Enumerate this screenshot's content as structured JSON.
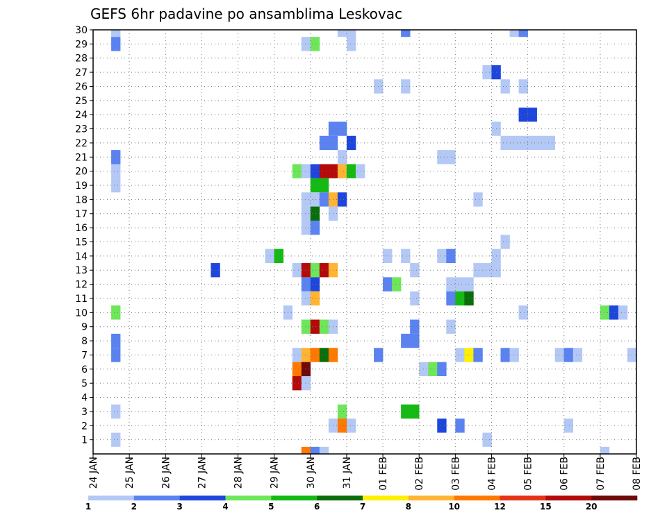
{
  "chart_data": {
    "type": "heatmap",
    "title": "GEFS 6hr padavine po ansamblima Leskovac",
    "xlabel": "",
    "ylabel": "",
    "x_ticks": [
      "24 JAN",
      "25 JAN",
      "26 JAN",
      "27 JAN",
      "28 JAN",
      "29 JAN",
      "30 JAN",
      "31 JAN",
      "01 FEB",
      "02 FEB",
      "03 FEB",
      "04 FEB",
      "05 FEB",
      "06 FEB",
      "07 FEB",
      "08 FEB"
    ],
    "x_range": [
      "24 JAN 00Z",
      "08 FEB 00Z"
    ],
    "time_step_hours": 6,
    "y_ticks": [
      1,
      2,
      3,
      4,
      5,
      6,
      7,
      8,
      9,
      10,
      11,
      12,
      13,
      14,
      15,
      16,
      17,
      18,
      19,
      20,
      21,
      22,
      23,
      24,
      25,
      26,
      27,
      28,
      29,
      30
    ],
    "y_range": [
      0,
      30
    ],
    "grid": true,
    "legend": {
      "position": "bottom",
      "labels": [
        "1",
        "2",
        "3",
        "4",
        "5",
        "6",
        "7",
        "8",
        "10",
        "12",
        "15",
        "20"
      ],
      "colors": [
        "#b4c8f5",
        "#5a82f0",
        "#1e46dc",
        "#6ee65a",
        "#14b914",
        "#0a6e0a",
        "#fff000",
        "#ffb432",
        "#ff7800",
        "#e63214",
        "#b40a0a",
        "#6e0a0a"
      ]
    },
    "cells": [
      {
        "member": 30,
        "time": "24 JAN 12Z",
        "value": 1
      },
      {
        "member": 30,
        "time": "30 JAN 18Z",
        "value": 1
      },
      {
        "member": 30,
        "time": "31 JAN 00Z",
        "value": 1
      },
      {
        "member": 30,
        "time": "01 FEB 12Z",
        "value": 2
      },
      {
        "member": 30,
        "time": "04 FEB 12Z",
        "value": 1
      },
      {
        "member": 30,
        "time": "04 FEB 18Z",
        "value": 2
      },
      {
        "member": 29,
        "time": "24 JAN 12Z",
        "value": 2
      },
      {
        "member": 29,
        "time": "29 JAN 18Z",
        "value": 1
      },
      {
        "member": 29,
        "time": "30 JAN 00Z",
        "value": 4
      },
      {
        "member": 29,
        "time": "31 JAN 00Z",
        "value": 1
      },
      {
        "member": 27,
        "time": "03 FEB 18Z",
        "value": 1
      },
      {
        "member": 27,
        "time": "04 FEB 00Z",
        "value": 3
      },
      {
        "member": 26,
        "time": "31 JAN 18Z",
        "value": 1
      },
      {
        "member": 26,
        "time": "01 FEB 12Z",
        "value": 1
      },
      {
        "member": 26,
        "time": "04 FEB 06Z",
        "value": 1
      },
      {
        "member": 26,
        "time": "04 FEB 18Z",
        "value": 1
      },
      {
        "member": 24,
        "time": "04 FEB 18Z",
        "value": 3
      },
      {
        "member": 24,
        "time": "05 FEB 00Z",
        "value": 3
      },
      {
        "member": 23,
        "time": "30 JAN 12Z",
        "value": 2
      },
      {
        "member": 23,
        "time": "30 JAN 18Z",
        "value": 2
      },
      {
        "member": 23,
        "time": "04 FEB 00Z",
        "value": 1
      },
      {
        "member": 22,
        "time": "30 JAN 06Z",
        "value": 2
      },
      {
        "member": 22,
        "time": "30 JAN 12Z",
        "value": 2
      },
      {
        "member": 22,
        "time": "31 JAN 00Z",
        "value": 3
      },
      {
        "member": 22,
        "time": "04 FEB 06Z",
        "value": 1
      },
      {
        "member": 22,
        "time": "04 FEB 12Z",
        "value": 1
      },
      {
        "member": 22,
        "time": "04 FEB 18Z",
        "value": 1
      },
      {
        "member": 22,
        "time": "05 FEB 00Z",
        "value": 1
      },
      {
        "member": 22,
        "time": "05 FEB 06Z",
        "value": 1
      },
      {
        "member": 22,
        "time": "05 FEB 12Z",
        "value": 1
      },
      {
        "member": 21,
        "time": "24 JAN 12Z",
        "value": 2
      },
      {
        "member": 21,
        "time": "30 JAN 18Z",
        "value": 1
      },
      {
        "member": 21,
        "time": "02 FEB 12Z",
        "value": 1
      },
      {
        "member": 21,
        "time": "02 FEB 18Z",
        "value": 1
      },
      {
        "member": 20,
        "time": "24 JAN 12Z",
        "value": 1
      },
      {
        "member": 20,
        "time": "29 JAN 12Z",
        "value": 4
      },
      {
        "member": 20,
        "time": "29 JAN 18Z",
        "value": 1
      },
      {
        "member": 20,
        "time": "30 JAN 00Z",
        "value": 3
      },
      {
        "member": 20,
        "time": "30 JAN 06Z",
        "value": 15
      },
      {
        "member": 20,
        "time": "30 JAN 12Z",
        "value": 15
      },
      {
        "member": 20,
        "time": "30 JAN 18Z",
        "value": 8
      },
      {
        "member": 20,
        "time": "31 JAN 00Z",
        "value": 5
      },
      {
        "member": 20,
        "time": "31 JAN 06Z",
        "value": 1
      },
      {
        "member": 19,
        "time": "24 JAN 12Z",
        "value": 1
      },
      {
        "member": 19,
        "time": "30 JAN 00Z",
        "value": 5
      },
      {
        "member": 19,
        "time": "30 JAN 06Z",
        "value": 5
      },
      {
        "member": 18,
        "time": "29 JAN 18Z",
        "value": 1
      },
      {
        "member": 18,
        "time": "30 JAN 00Z",
        "value": 1
      },
      {
        "member": 18,
        "time": "30 JAN 06Z",
        "value": 2
      },
      {
        "member": 18,
        "time": "30 JAN 12Z",
        "value": 8
      },
      {
        "member": 18,
        "time": "30 JAN 18Z",
        "value": 3
      },
      {
        "member": 18,
        "time": "03 FEB 12Z",
        "value": 1
      },
      {
        "member": 17,
        "time": "29 JAN 18Z",
        "value": 1
      },
      {
        "member": 17,
        "time": "30 JAN 00Z",
        "value": 6
      },
      {
        "member": 17,
        "time": "30 JAN 12Z",
        "value": 1
      },
      {
        "member": 16,
        "time": "29 JAN 18Z",
        "value": 1
      },
      {
        "member": 16,
        "time": "30 JAN 00Z",
        "value": 2
      },
      {
        "member": 15,
        "time": "04 FEB 06Z",
        "value": 1
      },
      {
        "member": 14,
        "time": "28 JAN 18Z",
        "value": 1
      },
      {
        "member": 14,
        "time": "29 JAN 00Z",
        "value": 5
      },
      {
        "member": 14,
        "time": "01 FEB 00Z",
        "value": 1
      },
      {
        "member": 14,
        "time": "01 FEB 12Z",
        "value": 1
      },
      {
        "member": 14,
        "time": "02 FEB 12Z",
        "value": 1
      },
      {
        "member": 14,
        "time": "02 FEB 18Z",
        "value": 2
      },
      {
        "member": 14,
        "time": "04 FEB 00Z",
        "value": 1
      },
      {
        "member": 13,
        "time": "27 JAN 06Z",
        "value": 3
      },
      {
        "member": 13,
        "time": "29 JAN 12Z",
        "value": 1
      },
      {
        "member": 13,
        "time": "29 JAN 18Z",
        "value": 15
      },
      {
        "member": 13,
        "time": "30 JAN 00Z",
        "value": 4
      },
      {
        "member": 13,
        "time": "30 JAN 06Z",
        "value": 15
      },
      {
        "member": 13,
        "time": "30 JAN 12Z",
        "value": 8
      },
      {
        "member": 13,
        "time": "01 FEB 18Z",
        "value": 1
      },
      {
        "member": 13,
        "time": "03 FEB 12Z",
        "value": 1
      },
      {
        "member": 13,
        "time": "03 FEB 18Z",
        "value": 1
      },
      {
        "member": 13,
        "time": "04 FEB 00Z",
        "value": 1
      },
      {
        "member": 12,
        "time": "29 JAN 18Z",
        "value": 2
      },
      {
        "member": 12,
        "time": "30 JAN 00Z",
        "value": 3
      },
      {
        "member": 12,
        "time": "01 FEB 00Z",
        "value": 2
      },
      {
        "member": 12,
        "time": "01 FEB 06Z",
        "value": 4
      },
      {
        "member": 12,
        "time": "02 FEB 18Z",
        "value": 1
      },
      {
        "member": 12,
        "time": "03 FEB 00Z",
        "value": 1
      },
      {
        "member": 12,
        "time": "03 FEB 06Z",
        "value": 1
      },
      {
        "member": 11,
        "time": "29 JAN 18Z",
        "value": 1
      },
      {
        "member": 11,
        "time": "30 JAN 00Z",
        "value": 8
      },
      {
        "member": 11,
        "time": "01 FEB 18Z",
        "value": 1
      },
      {
        "member": 11,
        "time": "02 FEB 18Z",
        "value": 2
      },
      {
        "member": 11,
        "time": "03 FEB 00Z",
        "value": 5
      },
      {
        "member": 11,
        "time": "03 FEB 06Z",
        "value": 6
      },
      {
        "member": 10,
        "time": "24 JAN 12Z",
        "value": 4
      },
      {
        "member": 10,
        "time": "29 JAN 06Z",
        "value": 1
      },
      {
        "member": 10,
        "time": "04 FEB 18Z",
        "value": 1
      },
      {
        "member": 10,
        "time": "07 FEB 00Z",
        "value": 4
      },
      {
        "member": 10,
        "time": "07 FEB 06Z",
        "value": 3
      },
      {
        "member": 10,
        "time": "07 FEB 12Z",
        "value": 1
      },
      {
        "member": 9,
        "time": "29 JAN 18Z",
        "value": 4
      },
      {
        "member": 9,
        "time": "30 JAN 00Z",
        "value": 15
      },
      {
        "member": 9,
        "time": "30 JAN 06Z",
        "value": 4
      },
      {
        "member": 9,
        "time": "30 JAN 12Z",
        "value": 1
      },
      {
        "member": 9,
        "time": "01 FEB 18Z",
        "value": 2
      },
      {
        "member": 9,
        "time": "02 FEB 18Z",
        "value": 1
      },
      {
        "member": 8,
        "time": "24 JAN 12Z",
        "value": 2
      },
      {
        "member": 8,
        "time": "01 FEB 12Z",
        "value": 2
      },
      {
        "member": 8,
        "time": "01 FEB 18Z",
        "value": 2
      },
      {
        "member": 7,
        "time": "24 JAN 12Z",
        "value": 2
      },
      {
        "member": 7,
        "time": "29 JAN 12Z",
        "value": 1
      },
      {
        "member": 7,
        "time": "29 JAN 18Z",
        "value": 8
      },
      {
        "member": 7,
        "time": "30 JAN 00Z",
        "value": 10
      },
      {
        "member": 7,
        "time": "30 JAN 06Z",
        "value": 6
      },
      {
        "member": 7,
        "time": "30 JAN 12Z",
        "value": 10
      },
      {
        "member": 7,
        "time": "31 JAN 18Z",
        "value": 2
      },
      {
        "member": 7,
        "time": "03 FEB 00Z",
        "value": 1
      },
      {
        "member": 7,
        "time": "03 FEB 06Z",
        "value": 7
      },
      {
        "member": 7,
        "time": "03 FEB 12Z",
        "value": 2
      },
      {
        "member": 7,
        "time": "04 FEB 06Z",
        "value": 2
      },
      {
        "member": 7,
        "time": "04 FEB 12Z",
        "value": 1
      },
      {
        "member": 7,
        "time": "05 FEB 18Z",
        "value": 1
      },
      {
        "member": 7,
        "time": "06 FEB 00Z",
        "value": 2
      },
      {
        "member": 7,
        "time": "06 FEB 06Z",
        "value": 1
      },
      {
        "member": 7,
        "time": "07 FEB 18Z",
        "value": 1
      },
      {
        "member": 6,
        "time": "29 JAN 12Z",
        "value": 10
      },
      {
        "member": 6,
        "time": "29 JAN 18Z",
        "value": 20
      },
      {
        "member": 6,
        "time": "02 FEB 00Z",
        "value": 1
      },
      {
        "member": 6,
        "time": "02 FEB 06Z",
        "value": 4
      },
      {
        "member": 6,
        "time": "02 FEB 12Z",
        "value": 2
      },
      {
        "member": 5,
        "time": "29 JAN 12Z",
        "value": 15
      },
      {
        "member": 5,
        "time": "29 JAN 18Z",
        "value": 1
      },
      {
        "member": 3,
        "time": "24 JAN 12Z",
        "value": 1
      },
      {
        "member": 3,
        "time": "30 JAN 18Z",
        "value": 4
      },
      {
        "member": 3,
        "time": "01 FEB 12Z",
        "value": 5
      },
      {
        "member": 3,
        "time": "01 FEB 18Z",
        "value": 5
      },
      {
        "member": 2,
        "time": "30 JAN 12Z",
        "value": 1
      },
      {
        "member": 2,
        "time": "30 JAN 18Z",
        "value": 10
      },
      {
        "member": 2,
        "time": "31 JAN 00Z",
        "value": 1
      },
      {
        "member": 2,
        "time": "02 FEB 12Z",
        "value": 3
      },
      {
        "member": 2,
        "time": "03 FEB 00Z",
        "value": 2
      },
      {
        "member": 2,
        "time": "06 FEB 00Z",
        "value": 1
      },
      {
        "member": 1,
        "time": "24 JAN 12Z",
        "value": 1
      },
      {
        "member": 1,
        "time": "03 FEB 18Z",
        "value": 1
      },
      {
        "member": 0,
        "time": "29 JAN 18Z",
        "value": 10
      },
      {
        "member": 0,
        "time": "30 JAN 00Z",
        "value": 2
      },
      {
        "member": 0,
        "time": "30 JAN 06Z",
        "value": 1
      },
      {
        "member": 0,
        "time": "07 FEB 00Z",
        "value": 1
      }
    ]
  }
}
